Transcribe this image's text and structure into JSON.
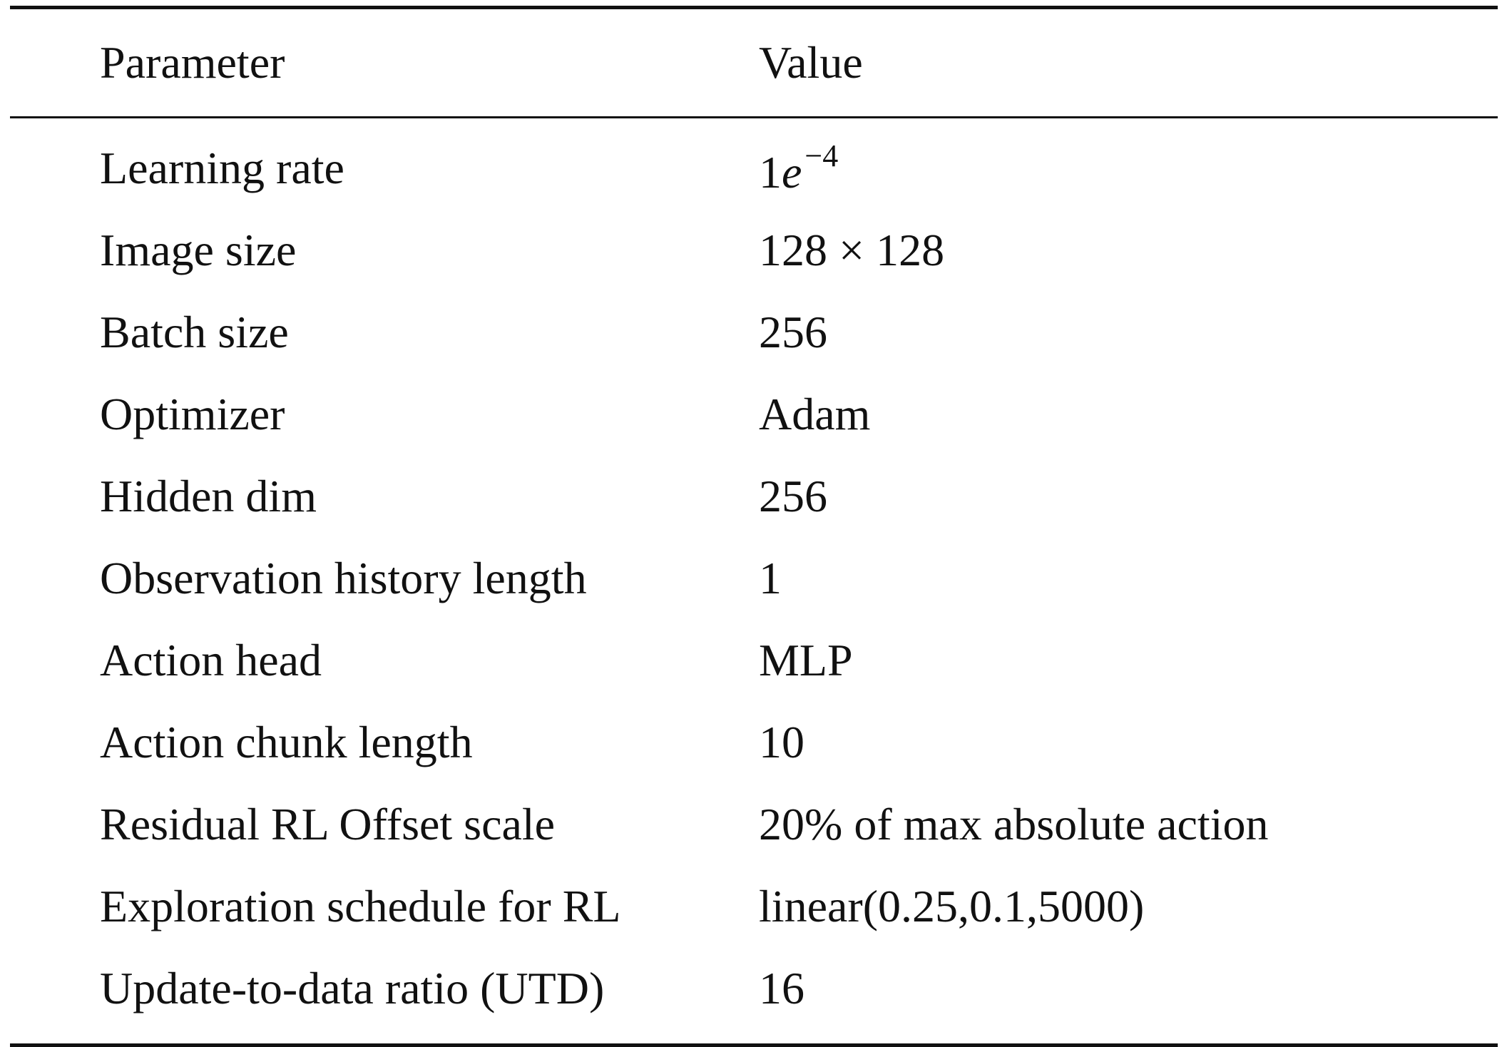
{
  "table": {
    "headers": {
      "parameter": "Parameter",
      "value": "Value"
    },
    "learning_rate": {
      "label": "Learning rate",
      "mantissa": "1",
      "base": "e",
      "exponent": "−4"
    },
    "rows": [
      {
        "parameter": "Image size",
        "value": "128 × 128"
      },
      {
        "parameter": "Batch size",
        "value": "256"
      },
      {
        "parameter": "Optimizer",
        "value": "Adam"
      },
      {
        "parameter": "Hidden dim",
        "value": "256"
      },
      {
        "parameter": "Observation history length",
        "value": "1"
      },
      {
        "parameter": "Action head",
        "value": "MLP"
      },
      {
        "parameter": "Action chunk length",
        "value": "10"
      },
      {
        "parameter": "Residual RL Offset scale",
        "value": "20% of max absolute action"
      },
      {
        "parameter": "Exploration schedule for RL",
        "value": "linear(0.25,0.1,5000)"
      },
      {
        "parameter": "Update-to-data ratio (UTD)",
        "value": "16"
      }
    ]
  }
}
